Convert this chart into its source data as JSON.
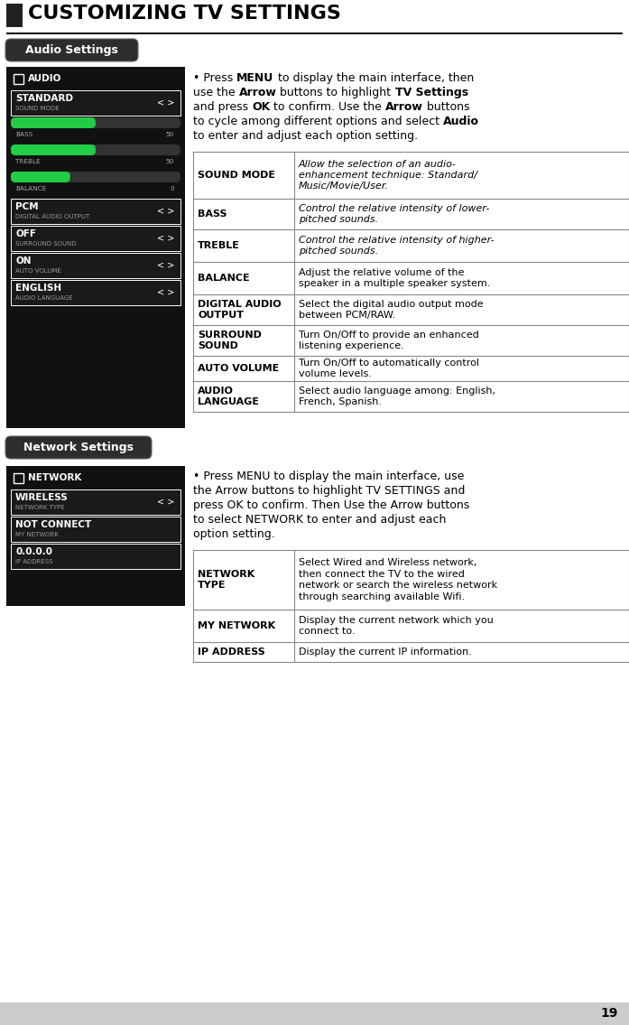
{
  "page_title": "CUSTOMIZING TV SETTINGS",
  "page_number": "19",
  "bg_color": "#ffffff",
  "section1_label": "Audio Settings",
  "section2_label": "Network Settings",
  "audio_menu_items": [
    {
      "main": "STANDARD",
      "sub": "SOUND MODE",
      "has_arrows": true,
      "type": "option"
    },
    {
      "main": "BASS",
      "value": "50",
      "type": "slider",
      "fill": 0.5
    },
    {
      "main": "TREBLE",
      "value": "50",
      "type": "slider",
      "fill": 0.5
    },
    {
      "main": "BALANCE",
      "value": "0",
      "type": "slider",
      "fill": 0.35
    },
    {
      "main": "PCM",
      "sub": "DIGITAL AUDIO OUTPUT",
      "has_arrows": true,
      "type": "option"
    },
    {
      "main": "OFF",
      "sub": "SURROUND SOUND",
      "has_arrows": true,
      "type": "option"
    },
    {
      "main": "ON",
      "sub": "AUTO VOLUME",
      "has_arrows": true,
      "type": "option"
    },
    {
      "main": "ENGLISH",
      "sub": "AUDIO LANGUAGE",
      "has_arrows": true,
      "type": "option"
    }
  ],
  "network_menu_items": [
    {
      "main": "WIRELESS",
      "sub": "NETWORK TYPE",
      "has_arrows": true,
      "type": "option"
    },
    {
      "main": "NOT CONNECT",
      "sub": "MY NETWORK",
      "type": "option"
    },
    {
      "main": "0.0.0.0",
      "sub": "IP ADDRESS",
      "type": "option"
    }
  ],
  "audio_table": [
    [
      "SOUND MODE",
      "Allow the selection of an audio-\nenhancement technique: Standard/\nMusic/Movie/User.",
      "italic"
    ],
    [
      "BASS",
      "Control the relative intensity of lower-\npitched sounds.",
      "italic"
    ],
    [
      "TREBLE",
      "Control the relative intensity of higher-\npitched sounds.",
      "italic"
    ],
    [
      "BALANCE",
      "Adjust the relative volume of the\nspeaker in a multiple speaker system.",
      "normal"
    ],
    [
      "DIGITAL AUDIO\nOUTPUT",
      "Select the digital audio output mode\nbetween PCM/RAW.",
      "normal"
    ],
    [
      "SURROUND\nSOUND",
      "Turn On/Off to provide an enhanced\nlistening experience.",
      "normal"
    ],
    [
      "AUTO VOLUME",
      "Turn On/Off to automatically control\nvolume levels.",
      "normal"
    ],
    [
      "AUDIO\nLANGUAGE",
      "Select audio language among: English,\nFrench, Spanish.",
      "normal"
    ]
  ],
  "network_table": [
    [
      "NETWORK\nTYPE",
      "Select Wired and Wireless network,\nthen connect the TV to the wired\nnetwork or search the wireless network\nthrough searching available Wifi.",
      "normal"
    ],
    [
      "MY NETWORK",
      "Display the current network which you\nconnect to.",
      "normal"
    ],
    [
      "IP ADDRESS",
      "Display the current IP information.",
      "normal"
    ]
  ],
  "panel_bg": "#111111",
  "panel_item_bg": "#1a1a1a",
  "slider_bg": "#333333",
  "slider_fill": "#22cc44",
  "table_border": "#888888",
  "bottom_bar": "#cccccc"
}
